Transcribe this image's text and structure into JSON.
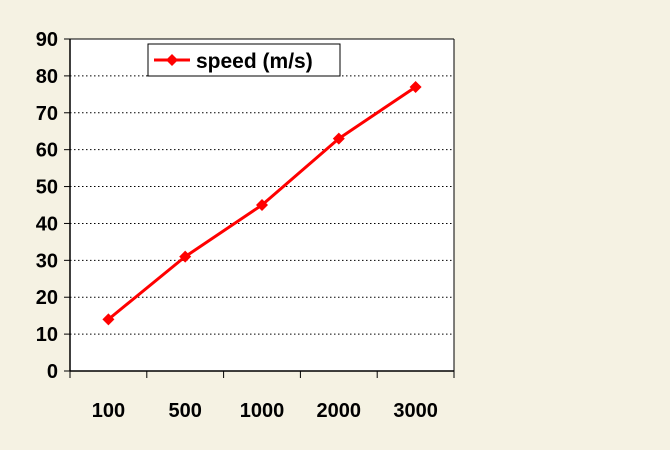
{
  "chart_data": {
    "type": "line",
    "categories": [
      "100",
      "500",
      "1000",
      "2000",
      "3000"
    ],
    "series": [
      {
        "name": "speed (m/s)",
        "values": [
          14,
          31,
          45,
          63,
          77
        ],
        "color": "#ff0000",
        "marker": "diamond"
      }
    ],
    "ylim": [
      0,
      90
    ],
    "yticks": [
      0,
      10,
      20,
      30,
      40,
      50,
      60,
      70,
      80,
      90
    ],
    "grid": "horizontal-dotted",
    "legend": "top-left",
    "background": "#f5f2e3",
    "plot_background": "#ffffff"
  }
}
